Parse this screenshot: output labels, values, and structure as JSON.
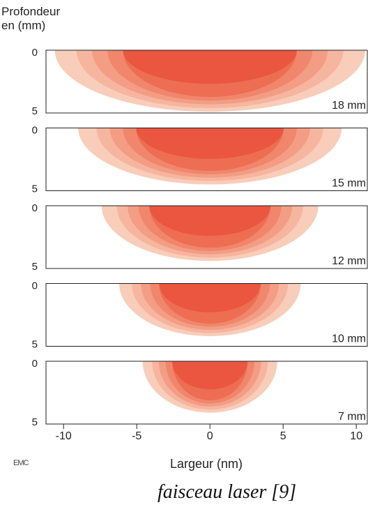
{
  "chart_data": {
    "type": "heatmap",
    "ylabel_line1": "Profondeur",
    "ylabel_line2": "en (mm)",
    "xlabel": "Largeur (nm)",
    "caption": "faisceau laser [9]",
    "watermark": "EMC",
    "xlim": [
      -11.2,
      10.8
    ],
    "ylim": [
      0,
      5
    ],
    "x_ticks": [
      "-10",
      "-5",
      "0",
      "5",
      "10"
    ],
    "x_tick_values": [
      -10,
      -5,
      0,
      5,
      10
    ],
    "y_tick_top": "0",
    "y_tick_bottom": "5",
    "level_colors": [
      "#f8cdb9",
      "#f6b59f",
      "#f39d85",
      "#f0866b",
      "#ed6e52",
      "#ea5640"
    ],
    "level_scale": [
      1.0,
      0.86,
      0.76,
      0.66,
      0.56
    ],
    "panels": [
      {
        "label": "18 mm",
        "half_width": 10.6,
        "depth": 4.9
      },
      {
        "label": "15 mm",
        "half_width": 9.0,
        "depth": 4.5
      },
      {
        "label": "12 mm",
        "half_width": 7.4,
        "depth": 4.4
      },
      {
        "label": "10 mm",
        "half_width": 6.2,
        "depth": 4.2
      },
      {
        "label": "7 mm",
        "half_width": 4.6,
        "depth": 4.1
      }
    ]
  }
}
